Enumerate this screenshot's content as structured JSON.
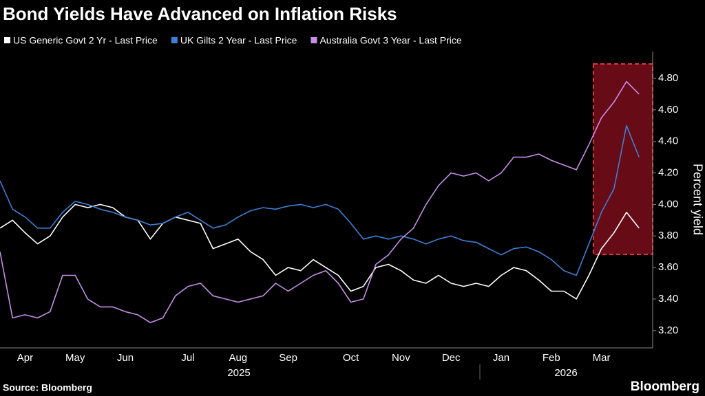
{
  "chart_data": {
    "type": "line",
    "title": "Bond Yields Have Advanced on Inflation Risks",
    "y_label": "Percent yield",
    "source": "Source: Bloomberg",
    "brand": "Bloomberg",
    "years": [
      "2025",
      "2026"
    ],
    "categories": [
      null,
      null,
      "Apr",
      null,
      null,
      null,
      "May",
      null,
      null,
      null,
      "Jun",
      null,
      null,
      null,
      null,
      "Jul",
      null,
      null,
      null,
      "Aug",
      null,
      null,
      null,
      "Sep",
      null,
      null,
      null,
      null,
      "Oct",
      null,
      null,
      null,
      "Nov",
      null,
      null,
      null,
      "Dec",
      null,
      null,
      null,
      "Jan",
      null,
      null,
      null,
      "Feb",
      null,
      null,
      null,
      "Mar",
      null,
      null,
      null
    ],
    "series": [
      {
        "name": "US Generic Govt 2 Yr - Last Price",
        "color": "#ffffff",
        "values": [
          3.85,
          3.9,
          3.82,
          3.75,
          3.8,
          3.92,
          4.0,
          3.98,
          4.0,
          3.98,
          3.92,
          3.9,
          3.78,
          3.88,
          3.92,
          3.9,
          3.88,
          3.72,
          3.75,
          3.78,
          3.7,
          3.65,
          3.55,
          3.6,
          3.58,
          3.65,
          3.6,
          3.55,
          3.45,
          3.48,
          3.6,
          3.62,
          3.58,
          3.52,
          3.5,
          3.55,
          3.5,
          3.48,
          3.5,
          3.48,
          3.55,
          3.6,
          3.58,
          3.52,
          3.45,
          3.45,
          3.4,
          3.55,
          3.72,
          3.82,
          3.95,
          3.85
        ]
      },
      {
        "name": "UK Gilts 2 Year - Last Price",
        "color": "#3d7fd6",
        "values": [
          4.15,
          3.97,
          3.92,
          3.85,
          3.85,
          3.95,
          4.02,
          4.0,
          3.97,
          3.95,
          3.92,
          3.9,
          3.87,
          3.88,
          3.92,
          3.95,
          3.9,
          3.85,
          3.87,
          3.92,
          3.96,
          3.98,
          3.97,
          3.99,
          4.0,
          3.98,
          4.0,
          3.97,
          3.88,
          3.78,
          3.8,
          3.78,
          3.8,
          3.78,
          3.75,
          3.78,
          3.8,
          3.77,
          3.76,
          3.72,
          3.68,
          3.72,
          3.73,
          3.7,
          3.65,
          3.58,
          3.55,
          3.75,
          3.95,
          4.1,
          4.5,
          4.3
        ]
      },
      {
        "name": "Australia Govt 3 Year - Last Price",
        "color": "#c88ee8",
        "values": [
          3.7,
          3.28,
          3.3,
          3.28,
          3.32,
          3.55,
          3.55,
          3.4,
          3.35,
          3.35,
          3.32,
          3.3,
          3.25,
          3.28,
          3.42,
          3.48,
          3.5,
          3.42,
          3.4,
          3.38,
          3.4,
          3.42,
          3.5,
          3.45,
          3.5,
          3.55,
          3.58,
          3.5,
          3.38,
          3.4,
          3.62,
          3.68,
          3.78,
          3.85,
          4.0,
          4.12,
          4.2,
          4.18,
          4.2,
          4.15,
          4.2,
          4.3,
          4.3,
          4.32,
          4.28,
          4.25,
          4.22,
          4.38,
          4.55,
          4.65,
          4.78,
          4.7
        ]
      }
    ],
    "ylim": [
      3.09,
      4.97
    ],
    "yticks": [
      {
        "value": 3.2,
        "label": "3.20"
      },
      {
        "value": 3.4,
        "label": "3.40"
      },
      {
        "value": 3.6,
        "label": "3.60"
      },
      {
        "value": 3.8,
        "label": "3.80"
      },
      {
        "value": 4.0,
        "label": "4.00"
      },
      {
        "value": 4.2,
        "label": "4.20"
      },
      {
        "value": 4.4,
        "label": "4.40"
      },
      {
        "value": 4.6,
        "label": "4.60"
      },
      {
        "value": 4.8,
        "label": "4.80"
      }
    ],
    "grid": false
  }
}
